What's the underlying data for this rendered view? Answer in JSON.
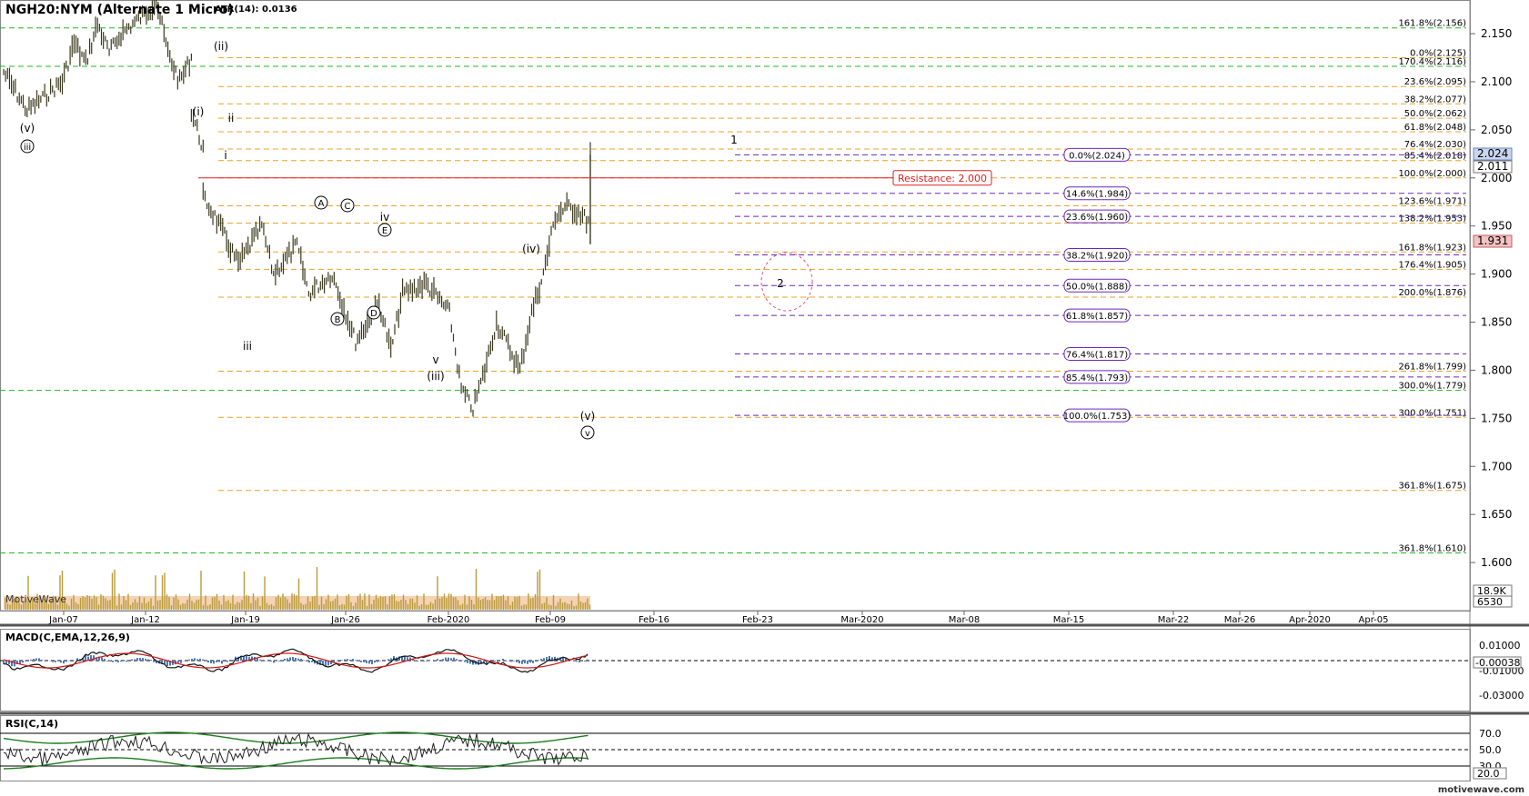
{
  "title": "NGH20:NYM (Alternate 1 Micro)",
  "atr_label": "ATR(14): 0.0136",
  "watermark": "MotiveWave",
  "brand": "motivewave.com",
  "colors": {
    "bar": "#3a3a1e",
    "green_line": "#22b622",
    "orange_line": "#e8a32a",
    "purple_line": "#6a28b8",
    "resistance": "#e02020",
    "volume": "#b89a3a",
    "volume_fill": "#f3c8a0",
    "macd_line": "#111111",
    "macd_signal": "#d01818",
    "macd_hist": "#4a78b8",
    "rsi_line": "#222222",
    "rsi_band": "#1e7d1e",
    "price_badge_blue": "#c9d6ee",
    "price_badge_red": "#f3c2c2"
  },
  "chart_data": [
    {
      "type": "line",
      "name": "price",
      "title": "NGH20:NYM (Alternate 1 Micro)",
      "x_ticks": [
        "Jan-07",
        "Jan-12",
        "Jan-19",
        "Jan-26",
        "Feb-2020",
        "Feb-09",
        "Feb-16",
        "Feb-23",
        "Mar-2020",
        "Mar-08",
        "Mar-15",
        "Mar-22",
        "Mar-26",
        "Apr-2020",
        "Apr-05"
      ],
      "y_ticks": [
        "2.150",
        "2.100",
        "2.050",
        "2.000",
        "1.950",
        "1.900",
        "1.850",
        "1.800",
        "1.750",
        "1.700",
        "1.650",
        "1.600"
      ],
      "ylim": [
        1.55,
        2.185
      ],
      "price_path": [
        [
          "Jan-02",
          2.11
        ],
        [
          "Jan-04",
          2.07
        ],
        [
          "Jan-07",
          2.1
        ],
        [
          "Jan-08",
          2.14
        ],
        [
          "Jan-09",
          2.12
        ],
        [
          "Jan-10",
          2.16
        ],
        [
          "Jan-11",
          2.13
        ],
        [
          "Jan-12",
          2.15
        ],
        [
          "Jan-14",
          2.17
        ],
        [
          "Jan-15",
          2.185
        ],
        [
          "Jan-16",
          2.13
        ],
        [
          "Jan-17",
          2.1
        ],
        [
          "Jan-18",
          2.125
        ],
        [
          "Jan-18",
          2.07
        ],
        [
          "Jan-19",
          2.03
        ],
        [
          "Jan-19",
          1.98
        ],
        [
          "Jan-20",
          1.96
        ],
        [
          "Jan-22",
          1.91
        ],
        [
          "Jan-24",
          1.95
        ],
        [
          "Jan-25",
          1.9
        ],
        [
          "Jan-27",
          1.93
        ],
        [
          "Jan-28",
          1.88
        ],
        [
          "Jan-30",
          1.9
        ],
        [
          "Feb-01",
          1.83
        ],
        [
          "Feb-03",
          1.87
        ],
        [
          "Feb-04",
          1.82
        ],
        [
          "Feb-05",
          1.88
        ],
        [
          "Feb-07",
          1.89
        ],
        [
          "Feb-09",
          1.86
        ],
        [
          "Feb-10",
          1.78
        ],
        [
          "Feb-11",
          1.76
        ],
        [
          "Feb-12",
          1.8
        ],
        [
          "Feb-13",
          1.85
        ],
        [
          "Feb-15",
          1.8
        ],
        [
          "Feb-16",
          1.86
        ],
        [
          "Feb-17",
          1.9
        ],
        [
          "Feb-18",
          1.96
        ],
        [
          "Feb-19",
          1.97
        ],
        [
          "Feb-20",
          1.965
        ],
        [
          "Feb-21",
          1.952
        ],
        [
          "Feb-21",
          2.024
        ],
        [
          "Feb-21",
          1.931
        ]
      ],
      "last_prices": [
        "2.024",
        "2.011",
        "1.931"
      ],
      "volume_labels": [
        "18.9K",
        "6530"
      ]
    },
    {
      "type": "line",
      "name": "MACD(C,EMA,12,26,9)",
      "y_ticks": [
        "0.01000",
        "-0.01000",
        "-0.03000"
      ],
      "last_value": "-0.00038"
    },
    {
      "type": "line",
      "name": "RSI(C,14)",
      "y_ticks": [
        "70.0",
        "50.0",
        "30.0"
      ],
      "last_value": "20.0"
    }
  ],
  "fib_levels": [
    {
      "label": "161.8%(2.156)",
      "color": "green"
    },
    {
      "label": "0.0%(2.125)",
      "color": "orange"
    },
    {
      "label": "170.4%(2.116)",
      "color": "green"
    },
    {
      "label": "23.6%(2.095)",
      "color": "orange"
    },
    {
      "label": "38.2%(2.077)",
      "color": "orange"
    },
    {
      "label": "50.0%(2.062)",
      "color": "orange"
    },
    {
      "label": "61.8%(2.048)",
      "color": "orange"
    },
    {
      "label": "76.4%(2.030)",
      "color": "orange"
    },
    {
      "label": "85.4%(2.018)",
      "color": "orange"
    },
    {
      "label": "100.0%(2.000)",
      "color": "orange"
    },
    {
      "label": "123.6%(1.971)",
      "color": "orange"
    },
    {
      "label": "138.2%(1.953)",
      "color": "orange"
    },
    {
      "label": "161.8%(1.923)",
      "color": "orange"
    },
    {
      "label": "176.4%(1.905)",
      "color": "orange"
    },
    {
      "label": "200.0%(1.876)",
      "color": "orange"
    },
    {
      "label": "261.8%(1.799)",
      "color": "orange"
    },
    {
      "label": "300.0%(1.779)",
      "color": "green"
    },
    {
      "label": "300.0%(1.751)",
      "color": "orange"
    },
    {
      "label": "361.8%(1.675)",
      "color": "orange"
    },
    {
      "label": "361.8%(1.610)",
      "color": "green"
    }
  ],
  "retracement_levels": [
    "0.0%(2.024)",
    "14.6%(1.984)",
    "23.6%(1.960)",
    "38.2%(1.920)",
    "50.0%(1.888)",
    "61.8%(1.857)",
    "76.4%(1.817)",
    "85.4%(1.793)",
    "100.0%(1.753)"
  ],
  "resistance": {
    "label": "Resistance: 2.000",
    "value": 2.0
  },
  "wave_labels": [
    "(v)",
    "iii",
    "(ii)",
    "(i)",
    "ii",
    "i",
    "iii",
    "A",
    "C",
    "iv",
    "E",
    "B",
    "D",
    "v",
    "(iii)",
    "(iv)",
    "(v)",
    "v",
    "1",
    "2"
  ]
}
